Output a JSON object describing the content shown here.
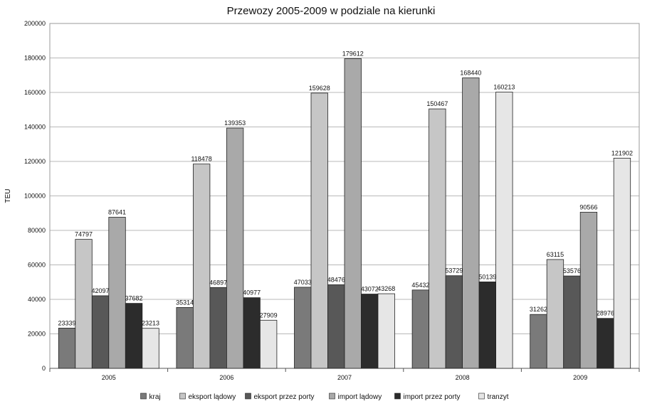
{
  "chart_data": {
    "type": "bar",
    "title": "Przewozy 2005-2009 w podziale na kierunki",
    "ylabel": "TEU",
    "xlabel": "",
    "ylim": [
      0,
      200000
    ],
    "yticks": [
      0,
      20000,
      40000,
      60000,
      80000,
      100000,
      120000,
      140000,
      160000,
      180000,
      200000
    ],
    "categories": [
      "2005",
      "2006",
      "2007",
      "2008",
      "2009"
    ],
    "grid": true,
    "legend_position": "bottom",
    "series": [
      {
        "name": "kraj",
        "color": "#7a7a7a",
        "values": [
          23339,
          35314,
          47033,
          45432,
          31262
        ]
      },
      {
        "name": "eksport lądowy",
        "color": "#c6c6c6",
        "values": [
          74797,
          118478,
          159628,
          150467,
          63115
        ]
      },
      {
        "name": "eksport przez porty",
        "color": "#585858",
        "values": [
          42097,
          46897,
          48476,
          53729,
          53576
        ]
      },
      {
        "name": "import lądowy",
        "color": "#a9a9a9",
        "values": [
          87641,
          139353,
          179612,
          168440,
          90566
        ]
      },
      {
        "name": "import przez porty",
        "color": "#2c2c2c",
        "values": [
          37682,
          40977,
          43072,
          50139,
          28976
        ]
      },
      {
        "name": "tranzyt",
        "color": "#e6e6e6",
        "values": [
          23213,
          27909,
          43268,
          160213,
          121902
        ]
      }
    ]
  }
}
